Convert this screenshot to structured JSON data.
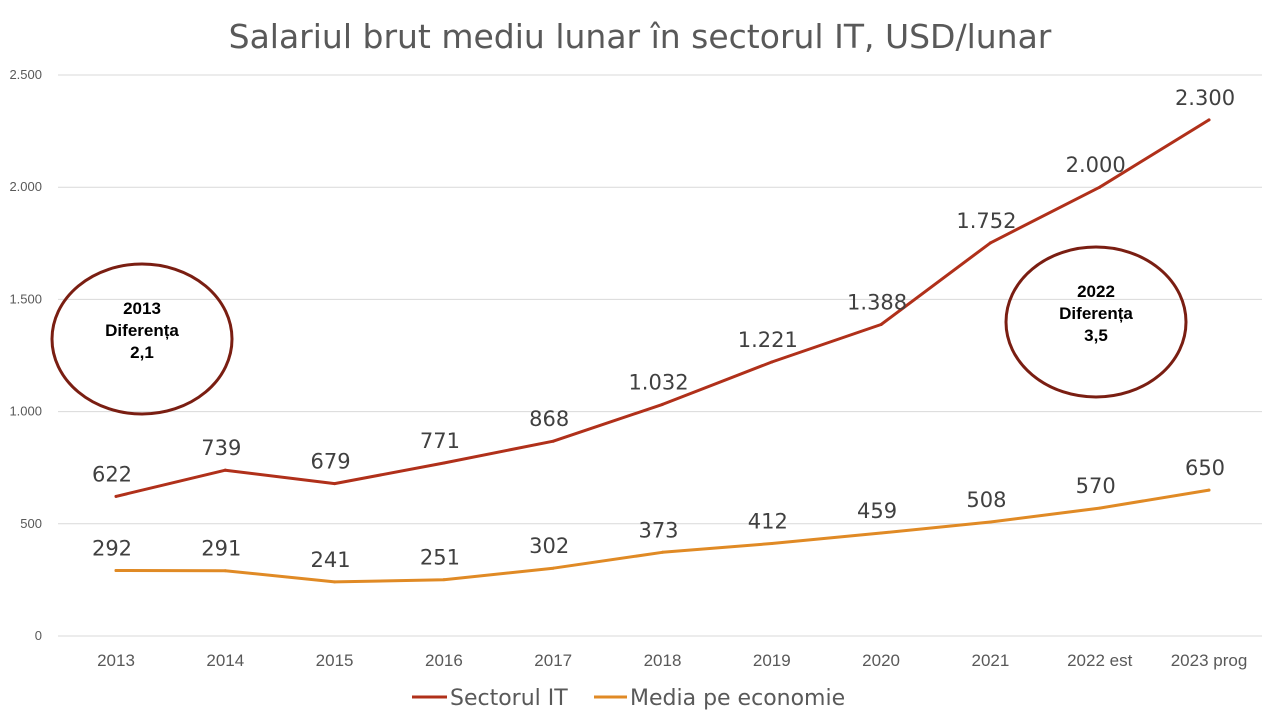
{
  "chart_data": {
    "type": "line",
    "title": "Salariul brut mediu lunar  în sectorul IT, USD/lunar",
    "categories": [
      "2013",
      "2014",
      "2015",
      "2016",
      "2017",
      "2018",
      "2019",
      "2020",
      "2021",
      "2022 est",
      "2023 prog"
    ],
    "series": [
      {
        "name": "Sectorul IT",
        "color": "#b0301a",
        "values": [
          622,
          739,
          679,
          771,
          868,
          1032,
          1221,
          1388,
          1752,
          2000,
          2300
        ],
        "labels": [
          "622",
          "739",
          "679",
          "771",
          "868",
          "1.032",
          "1.221",
          "1.388",
          "1.752",
          "2.000",
          "2.300"
        ]
      },
      {
        "name": "Media pe economie",
        "color": "#e08a25",
        "values": [
          292,
          291,
          241,
          251,
          302,
          373,
          412,
          459,
          508,
          570,
          650
        ],
        "labels": [
          "292",
          "291",
          "241",
          "251",
          "302",
          "373",
          "412",
          "459",
          "508",
          "570",
          "650"
        ]
      }
    ],
    "ylim": [
      0,
      2500
    ],
    "yticks": [
      0,
      500,
      1000,
      1500,
      2000,
      2500
    ],
    "ytick_labels": [
      "0",
      "500",
      "1.000",
      "1.500",
      "2.000",
      "2.500"
    ],
    "grid": true,
    "legend_position": "bottom",
    "annotations": [
      {
        "lines": [
          "2013",
          "Diferența",
          "2,1"
        ],
        "shape": "ellipse",
        "color": "#7a1e12"
      },
      {
        "lines": [
          "2022",
          "Diferența",
          "3,5"
        ],
        "shape": "ellipse",
        "color": "#7a1e12"
      }
    ]
  }
}
